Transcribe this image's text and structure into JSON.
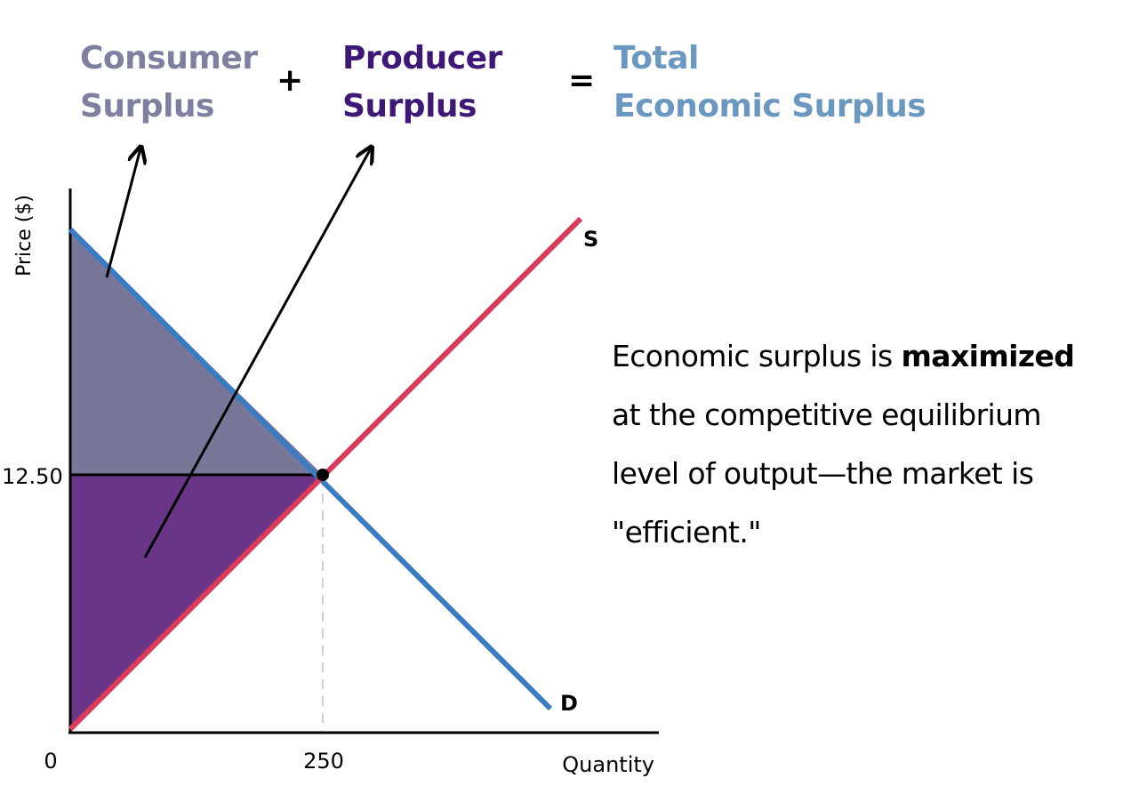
{
  "header": {
    "consumer_line1": "Consumer",
    "consumer_line2": "Surplus",
    "plus": "+",
    "producer_line1": "Producer",
    "producer_line2": "Surplus",
    "equals": "=",
    "total_line1": "Total",
    "total_line2": "Economic Surplus"
  },
  "chart": {
    "ylabel": "Price ($)",
    "xlabel": "Quantity",
    "origin_label": "0",
    "equilibrium_quantity_label": "250",
    "equilibrium_price_label": "12.50",
    "supply_label": "S",
    "demand_label": "D"
  },
  "note": {
    "line1_pre": "Economic surplus is ",
    "line1_bold": "maximized",
    "line2": "at the competitive equilibrium",
    "line3": "level of output—the market is",
    "line4": "\"efficient.\""
  },
  "colors": {
    "consumer_text": "#7f7f9f",
    "producer_text": "#3e1877",
    "total_text": "#6b98c0",
    "consumer_fill": "#777799",
    "producer_fill": "#6a3487",
    "demand_line": "#3a7cc1",
    "supply_line": "#dc3a5a"
  }
}
